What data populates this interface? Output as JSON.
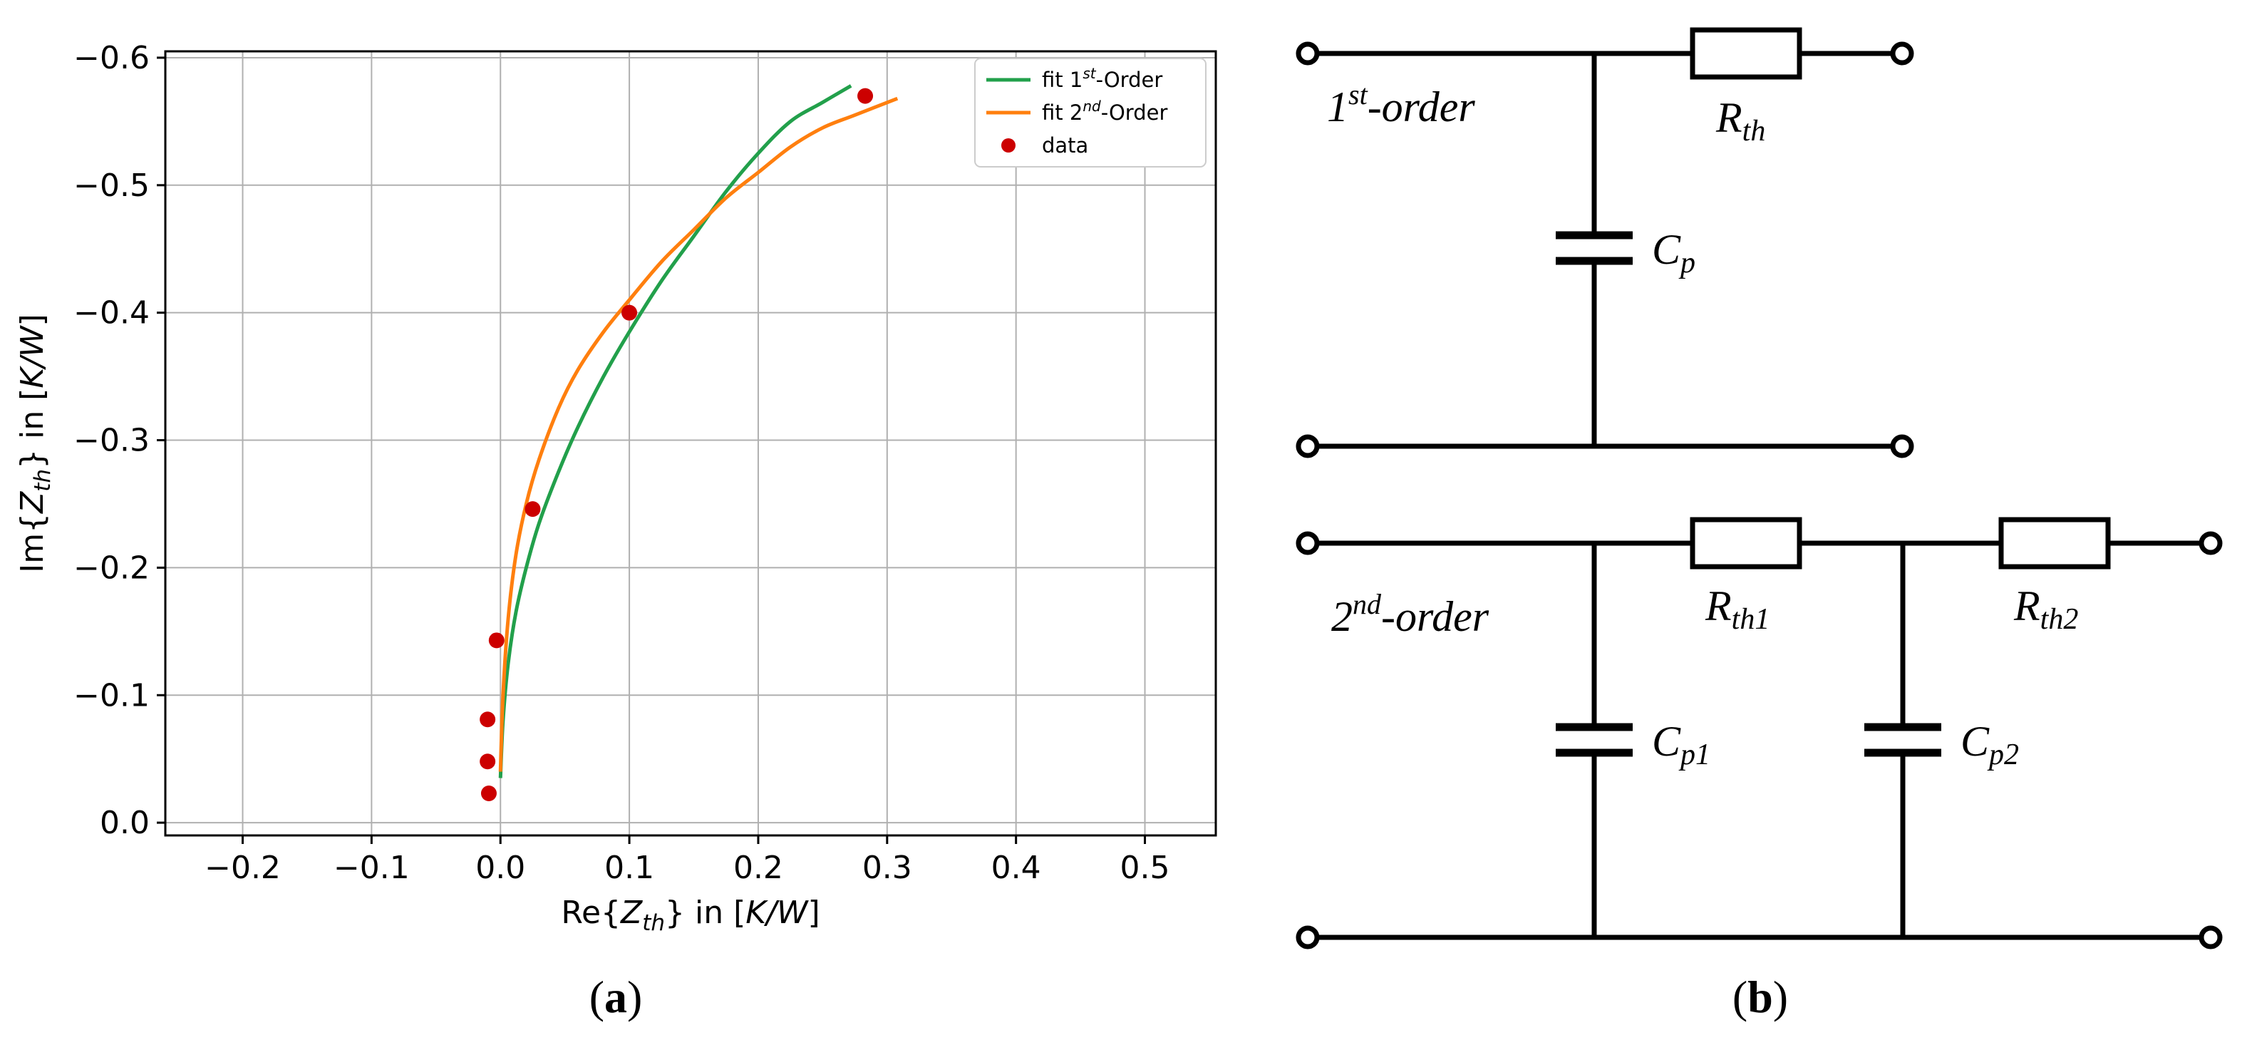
{
  "chart_data": {
    "type": "line",
    "xlabel_prefix": "Re{",
    "xlabel_var": "Z",
    "xlabel_sub": "th",
    "xlabel_suffix": "} in [",
    "xlabel_unit": "K/W",
    "xlabel_close": "]",
    "ylabel_prefix": "Im{",
    "ylabel_var": "Z",
    "ylabel_sub": "th",
    "ylabel_suffix": "} in [",
    "ylabel_unit": "K/W",
    "ylabel_close": "]",
    "xlim": [
      -0.26,
      0.555
    ],
    "ylim": [
      0.01,
      -0.605
    ],
    "y_inverted": true,
    "grid": true,
    "legend_placement": "top-right",
    "xticks": [
      -0.2,
      -0.1,
      0.0,
      0.1,
      0.2,
      0.3,
      0.4,
      0.5
    ],
    "xtick_labels": [
      "−0.2",
      "−0.1",
      "0.0",
      "0.1",
      "0.2",
      "0.3",
      "0.4",
      "0.5"
    ],
    "yticks": [
      -0.6,
      -0.5,
      -0.4,
      -0.3,
      -0.2,
      -0.1,
      0.0
    ],
    "ytick_labels": [
      "−0.6",
      "−0.5",
      "−0.4",
      "−0.3",
      "−0.2",
      "−0.1",
      "0.0"
    ],
    "series": [
      {
        "name": "fit 1st-Order",
        "legend_base": "fit 1",
        "legend_sup": "st",
        "legend_tail": "-Order",
        "kind": "line",
        "color": "#22a04b",
        "x": [
          0.0,
          0.002,
          0.006,
          0.012,
          0.02,
          0.03,
          0.045,
          0.06,
          0.08,
          0.1,
          0.125,
          0.15,
          0.175,
          0.2,
          0.225,
          0.25,
          0.272
        ],
        "y": [
          -0.035,
          -0.08,
          -0.125,
          -0.165,
          -0.2,
          -0.235,
          -0.275,
          -0.31,
          -0.35,
          -0.385,
          -0.425,
          -0.46,
          -0.495,
          -0.525,
          -0.55,
          -0.565,
          -0.578
        ]
      },
      {
        "name": "fit 2nd-Order",
        "legend_base": "fit 2",
        "legend_sup": "nd",
        "legend_tail": "-Order",
        "kind": "line",
        "color": "#ff7f0e",
        "x": [
          0.0,
          0.002,
          0.006,
          0.012,
          0.02,
          0.03,
          0.045,
          0.06,
          0.08,
          0.1,
          0.125,
          0.15,
          0.175,
          0.2,
          0.225,
          0.25,
          0.275,
          0.308
        ],
        "y": [
          -0.04,
          -0.1,
          -0.16,
          -0.21,
          -0.25,
          -0.285,
          -0.325,
          -0.355,
          -0.385,
          -0.41,
          -0.44,
          -0.465,
          -0.49,
          -0.51,
          -0.53,
          -0.545,
          -0.555,
          -0.568
        ]
      },
      {
        "name": "data",
        "legend_base": "data",
        "kind": "scatter",
        "color": "#cc0000",
        "x": [
          -0.009,
          -0.01,
          -0.01,
          -0.003,
          0.025,
          0.1,
          0.283
        ],
        "y": [
          -0.023,
          -0.048,
          -0.081,
          -0.143,
          -0.246,
          -0.4,
          -0.57
        ]
      }
    ]
  },
  "captions": {
    "left": "a",
    "right": "b",
    "open": "(",
    "close": ")"
  },
  "circuit": {
    "first": {
      "order_num": "1",
      "order_sup": "st",
      "order_tail": "-order",
      "r_base": "R",
      "r_sub": "th",
      "c_base": "C",
      "c_sub": "p"
    },
    "second": {
      "order_num": "2",
      "order_sup": "nd",
      "order_tail": "-order",
      "r1_base": "R",
      "r1_sub": "th1",
      "r2_base": "R",
      "r2_sub": "th2",
      "c1_base": "C",
      "c1_sub": "p1",
      "c2_base": "C",
      "c2_sub": "p2"
    }
  }
}
